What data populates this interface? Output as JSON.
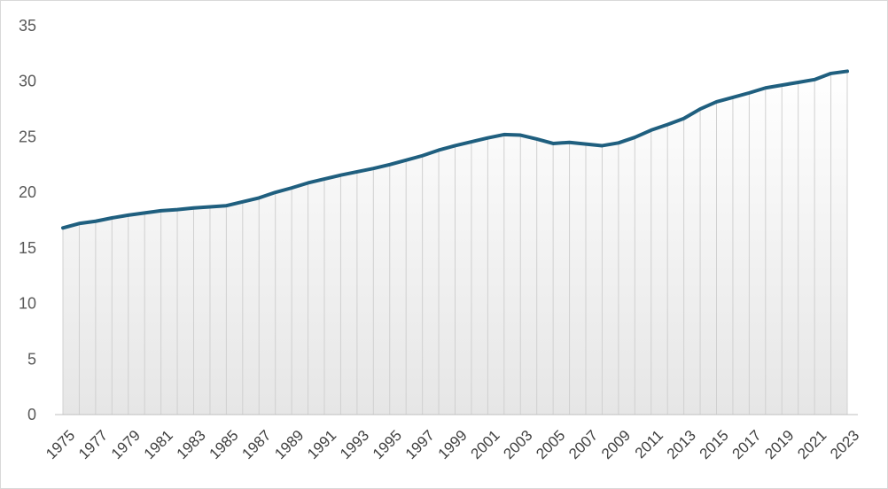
{
  "chart_data": {
    "type": "area",
    "title": "",
    "xlabel": "",
    "ylabel": "",
    "ylim": [
      0,
      35
    ],
    "yticks": [
      0,
      5,
      10,
      15,
      20,
      25,
      30,
      35
    ],
    "grid": "vertical drop lines per year",
    "legend": "none",
    "colors": {
      "line": "#1f5f7f",
      "fill_top": "#ffffff",
      "fill_bottom": "#e6e6e6",
      "drop_line": "#d0d0d0",
      "axis": "#bfbfbf"
    },
    "x": [
      1975,
      1976,
      1977,
      1978,
      1979,
      1980,
      1981,
      1982,
      1983,
      1984,
      1985,
      1986,
      1987,
      1988,
      1989,
      1990,
      1991,
      1992,
      1993,
      1994,
      1995,
      1996,
      1997,
      1998,
      1999,
      2000,
      2001,
      2002,
      2003,
      2004,
      2005,
      2006,
      2007,
      2008,
      2009,
      2010,
      2011,
      2012,
      2013,
      2014,
      2015,
      2016,
      2017,
      2018,
      2019,
      2020,
      2021,
      2022,
      2023
    ],
    "x_tick_labels": [
      "1975",
      "1977",
      "1979",
      "1981",
      "1983",
      "1985",
      "1987",
      "1989",
      "1991",
      "1993",
      "1995",
      "1997",
      "1999",
      "2001",
      "2003",
      "2005",
      "2007",
      "2009",
      "2011",
      "2013",
      "2015",
      "2017",
      "2019",
      "2021",
      "2023"
    ],
    "values": [
      16.8,
      17.2,
      17.4,
      17.7,
      17.95,
      18.15,
      18.35,
      18.45,
      18.6,
      18.7,
      18.8,
      19.15,
      19.5,
      20.0,
      20.4,
      20.85,
      21.2,
      21.55,
      21.85,
      22.15,
      22.5,
      22.9,
      23.3,
      23.8,
      24.2,
      24.55,
      24.9,
      25.2,
      25.15,
      24.8,
      24.4,
      24.5,
      24.35,
      24.2,
      24.45,
      24.95,
      25.6,
      26.1,
      26.65,
      27.5,
      28.15,
      28.55,
      28.95,
      29.4,
      29.65,
      29.9,
      30.15,
      30.7,
      30.9
    ]
  }
}
